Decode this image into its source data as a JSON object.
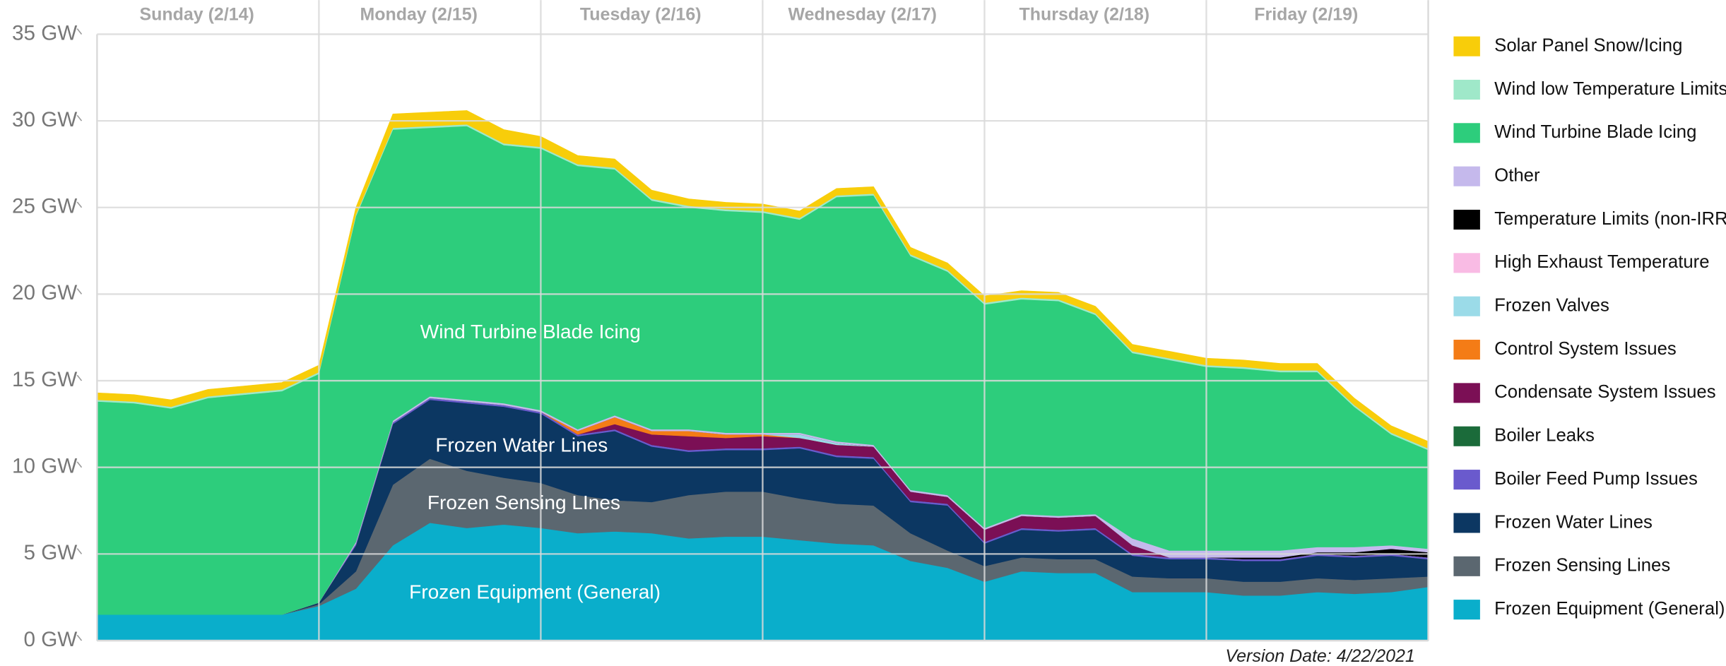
{
  "chart_data": {
    "type": "stacked-area",
    "day_labels": [
      "Sunday (2/14)",
      "Monday (2/15)",
      "Tuesday (2/16)",
      "Wednesday (2/17)",
      "Thursday (2/18)",
      "Friday (2/19)"
    ],
    "x": [
      0,
      4,
      8,
      12,
      16,
      20,
      24,
      28,
      32,
      36,
      40,
      44,
      48,
      52,
      56,
      60,
      64,
      68,
      72,
      76,
      80,
      84,
      88,
      92,
      96,
      100,
      104,
      108,
      112,
      116,
      120,
      124,
      128,
      132,
      136,
      140,
      144
    ],
    "xlim": [
      0,
      144
    ],
    "ylim": [
      0,
      35
    ],
    "yticks": [
      {
        "value": 0,
        "label": "0 GW"
      },
      {
        "value": 5,
        "label": "5 GW"
      },
      {
        "value": 10,
        "label": "10 GW"
      },
      {
        "value": 15,
        "label": "15 GW"
      },
      {
        "value": 20,
        "label": "20 GW"
      },
      {
        "value": 25,
        "label": "25 GW"
      },
      {
        "value": 30,
        "label": "30 GW"
      },
      {
        "value": 35,
        "label": "35 GW"
      }
    ],
    "grid": true,
    "legend": "right",
    "series": [
      {
        "name": "Frozen Equipment (General)",
        "color": "#0aaecb",
        "values": [
          1.5,
          1.5,
          1.5,
          1.5,
          1.5,
          1.5,
          2.0,
          3.0,
          5.5,
          6.8,
          6.5,
          6.7,
          6.5,
          6.2,
          6.3,
          6.2,
          5.9,
          6.0,
          6.0,
          5.8,
          5.6,
          5.5,
          4.6,
          4.2,
          3.4,
          4.0,
          3.9,
          3.9,
          2.8,
          2.8,
          2.8,
          2.6,
          2.6,
          2.8,
          2.7,
          2.8,
          3.1
        ]
      },
      {
        "name": "Frozen Sensing Lines",
        "color": "#5b6770",
        "values": [
          0,
          0,
          0,
          0,
          0,
          0,
          0.1,
          1.0,
          3.5,
          3.7,
          3.3,
          2.7,
          2.6,
          2.2,
          1.8,
          1.8,
          2.5,
          2.6,
          2.6,
          2.4,
          2.3,
          2.3,
          1.6,
          1.0,
          0.9,
          0.8,
          0.8,
          0.8,
          0.9,
          0.8,
          0.8,
          0.8,
          0.8,
          0.8,
          0.8,
          0.8,
          0.6
        ]
      },
      {
        "name": "Frozen Water Lines",
        "color": "#0c3762",
        "values": [
          0,
          0,
          0,
          0,
          0,
          0,
          0.1,
          1.5,
          3.5,
          3.4,
          3.9,
          4.1,
          4.0,
          3.4,
          4.0,
          3.2,
          2.5,
          2.4,
          2.4,
          2.9,
          2.7,
          2.7,
          1.8,
          2.6,
          1.3,
          1.6,
          1.6,
          1.7,
          1.2,
          1.1,
          1.1,
          1.2,
          1.2,
          1.3,
          1.3,
          1.3,
          1.0
        ]
      },
      {
        "name": "Boiler Feed Pump Issues",
        "color": "#6a5acd",
        "values": [
          0,
          0,
          0,
          0,
          0,
          0,
          0,
          0.1,
          0.1,
          0.1,
          0.1,
          0.1,
          0.1,
          0.1,
          0.1,
          0.1,
          0.1,
          0.1,
          0.1,
          0.1,
          0.1,
          0.1,
          0.1,
          0.1,
          0.1,
          0.1,
          0.1,
          0.1,
          0.1,
          0.1,
          0.1,
          0.1,
          0.1,
          0.1,
          0.1,
          0.1,
          0.1
        ]
      },
      {
        "name": "Boiler Leaks",
        "color": "#1b6b3a",
        "values": [
          0,
          0,
          0,
          0,
          0,
          0,
          0,
          0,
          0,
          0,
          0,
          0,
          0,
          0,
          0,
          0,
          0,
          0,
          0,
          0,
          0,
          0,
          0,
          0,
          0,
          0,
          0,
          0,
          0,
          0,
          0,
          0,
          0,
          0,
          0,
          0,
          0
        ]
      },
      {
        "name": "Condensate System Issues",
        "color": "#7b0f55",
        "values": [
          0,
          0,
          0,
          0,
          0,
          0,
          0,
          0,
          0,
          0,
          0,
          0,
          0,
          0,
          0.3,
          0.6,
          0.8,
          0.6,
          0.7,
          0.5,
          0.6,
          0.6,
          0.5,
          0.4,
          0.7,
          0.7,
          0.7,
          0.7,
          0.5,
          0,
          0,
          0,
          0,
          0,
          0,
          0,
          0
        ]
      },
      {
        "name": "Control System Issues",
        "color": "#f47c16",
        "values": [
          0,
          0,
          0,
          0,
          0,
          0,
          0,
          0,
          0,
          0,
          0,
          0,
          0,
          0.2,
          0.4,
          0.2,
          0.3,
          0.2,
          0.1,
          0,
          0,
          0,
          0,
          0,
          0,
          0,
          0,
          0,
          0,
          0,
          0,
          0,
          0,
          0,
          0,
          0,
          0
        ]
      },
      {
        "name": "Frozen Valves",
        "color": "#9bdbe8",
        "values": [
          0,
          0,
          0,
          0,
          0,
          0,
          0,
          0,
          0,
          0,
          0,
          0,
          0,
          0,
          0,
          0,
          0,
          0,
          0,
          0.2,
          0.1,
          0,
          0,
          0,
          0,
          0,
          0,
          0,
          0,
          0,
          0,
          0,
          0,
          0,
          0,
          0,
          0
        ]
      },
      {
        "name": "High Exhaust Temperature",
        "color": "#f9bbe4",
        "values": [
          0,
          0,
          0,
          0,
          0,
          0,
          0,
          0,
          0,
          0,
          0,
          0,
          0,
          0,
          0,
          0,
          0,
          0,
          0,
          0,
          0,
          0,
          0,
          0,
          0,
          0,
          0,
          0,
          0,
          0,
          0,
          0,
          0,
          0,
          0,
          0,
          0
        ]
      },
      {
        "name": "Temperature Limits (non-IRR)",
        "color": "#000000",
        "values": [
          0,
          0,
          0,
          0,
          0,
          0,
          0,
          0,
          0,
          0,
          0,
          0,
          0,
          0,
          0,
          0,
          0,
          0,
          0,
          0,
          0,
          0,
          0,
          0,
          0,
          0,
          0,
          0,
          0,
          0,
          0,
          0.1,
          0.1,
          0.1,
          0.2,
          0.3,
          0.3
        ]
      },
      {
        "name": "Other",
        "color": "#c5b9ec",
        "values": [
          0,
          0,
          0,
          0,
          0,
          0,
          0,
          0.1,
          0.1,
          0.1,
          0.1,
          0.1,
          0.1,
          0.1,
          0.1,
          0.1,
          0.1,
          0.1,
          0.1,
          0.1,
          0.1,
          0.1,
          0.1,
          0.1,
          0.1,
          0.1,
          0.1,
          0.1,
          0.4,
          0.4,
          0.4,
          0.4,
          0.4,
          0.3,
          0.3,
          0.2,
          0.2
        ]
      },
      {
        "name": "Wind Turbine Blade Icing",
        "color": "#2dcd7c",
        "values": [
          12.3,
          12.2,
          11.9,
          12.5,
          12.7,
          12.9,
          13.2,
          18.8,
          16.8,
          15.5,
          15.8,
          14.9,
          15.1,
          15.2,
          14.2,
          13.2,
          12.8,
          12.8,
          12.7,
          12.3,
          14.1,
          14.4,
          13.5,
          12.9,
          12.9,
          12.4,
          12.4,
          11.5,
          10.7,
          11.0,
          10.6,
          10.5,
          10.3,
          10.1,
          8.1,
          6.4,
          5.7
        ]
      },
      {
        "name": "Wind low Temperature Limits",
        "color": "#9fe8c9",
        "values": [
          0.1,
          0.1,
          0.1,
          0.1,
          0.1,
          0.1,
          0.1,
          0.1,
          0.1,
          0.1,
          0.1,
          0.1,
          0.1,
          0.1,
          0.1,
          0.1,
          0.1,
          0.1,
          0.1,
          0.1,
          0.1,
          0.1,
          0.1,
          0.1,
          0.1,
          0.1,
          0.1,
          0.1,
          0.1,
          0.1,
          0.1,
          0.1,
          0.1,
          0.1,
          0.1,
          0.1,
          0.1
        ]
      },
      {
        "name": "Solar Panel Snow/Icing",
        "color": "#f8cd0a",
        "values": [
          0.4,
          0.4,
          0.4,
          0.4,
          0.4,
          0.4,
          0.4,
          0.4,
          0.8,
          0.8,
          0.8,
          0.8,
          0.6,
          0.5,
          0.5,
          0.5,
          0.4,
          0.4,
          0.4,
          0.4,
          0.4,
          0.4,
          0.4,
          0.4,
          0.4,
          0.4,
          0.4,
          0.4,
          0.4,
          0.4,
          0.4,
          0.4,
          0.4,
          0.4,
          0.4,
          0.4,
          0.4
        ]
      }
    ],
    "annotations": [
      "Wind Turbine Blade Icing",
      "Frozen Water Lines",
      "Frozen Sensing LInes",
      "Frozen Equipment (General)"
    ],
    "footnote": "Version Date: 4/22/2021"
  }
}
